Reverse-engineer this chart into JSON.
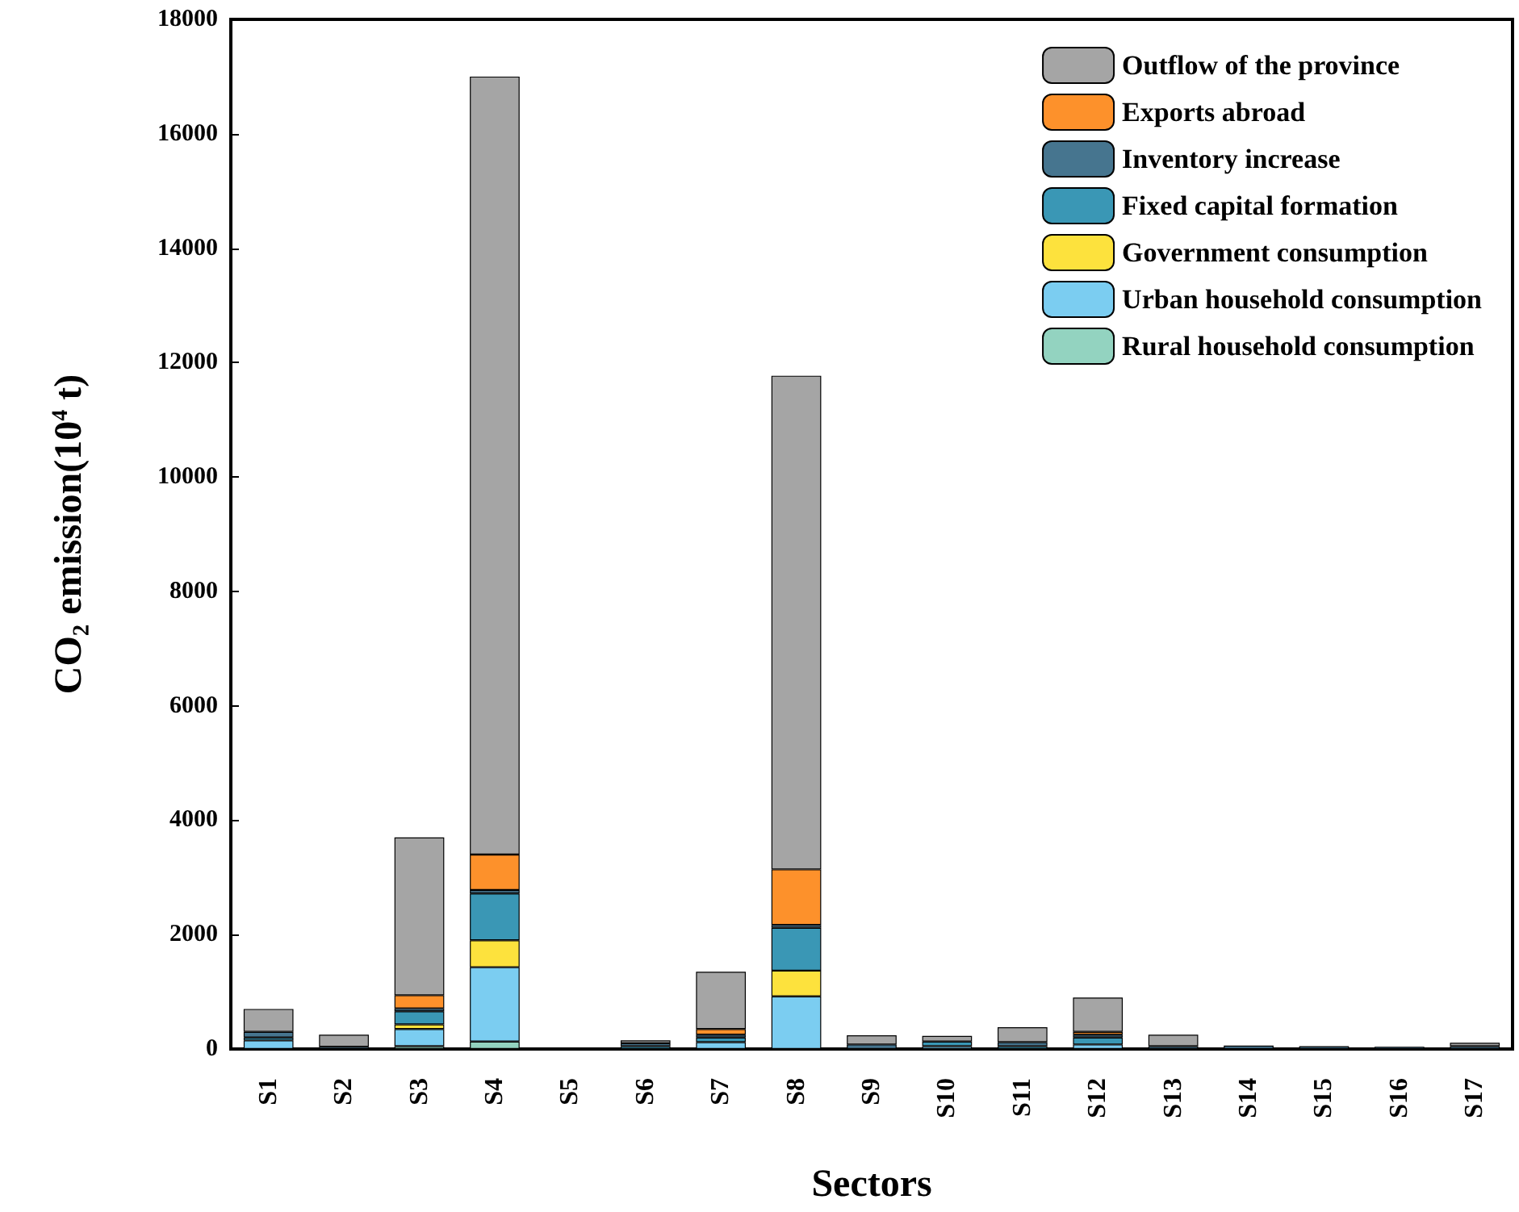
{
  "chart_data": {
    "type": "bar",
    "stacked": true,
    "xlabel": "Sectors",
    "ylabel": "CO₂ emission(10$^{4}$ t)",
    "categories": [
      "S1",
      "S2",
      "S3",
      "S4",
      "S5",
      "S6",
      "S7",
      "S8",
      "S9",
      "S10",
      "S11",
      "S12",
      "S13",
      "S14",
      "S15",
      "S16",
      "S17"
    ],
    "ylim": [
      0,
      18000
    ],
    "yticks": [
      0,
      2000,
      4000,
      6000,
      8000,
      10000,
      12000,
      14000,
      16000,
      18000
    ],
    "grid": false,
    "legend": "top right",
    "series": [
      {
        "name": "Rural household consumption",
        "color": "#93d3c0",
        "values": [
          null,
          null,
          50,
          130,
          null,
          null,
          null,
          null,
          null,
          null,
          null,
          null,
          null,
          null,
          null,
          null,
          null
        ]
      },
      {
        "name": "Urban household consumption",
        "color": "#7bcdf1",
        "values": [
          150,
          null,
          300,
          1300,
          null,
          null,
          120,
          920,
          null,
          50,
          null,
          80,
          null,
          null,
          null,
          null,
          null
        ]
      },
      {
        "name": "Government consumption",
        "color": "#fde23d",
        "values": [
          null,
          null,
          80,
          470,
          null,
          null,
          null,
          450,
          null,
          null,
          null,
          null,
          null,
          null,
          null,
          null,
          null
        ]
      },
      {
        "name": "Fixed capital formation",
        "color": "#3a97b5",
        "values": [
          50,
          null,
          230,
          820,
          null,
          50,
          80,
          750,
          null,
          80,
          50,
          120,
          null,
          null,
          null,
          null,
          null
        ]
      },
      {
        "name": "Inventory increase",
        "color": "#46758f",
        "values": [
          100,
          40,
          50,
          60,
          null,
          50,
          50,
          50,
          80,
          null,
          70,
          50,
          50,
          60,
          50,
          40,
          50
        ]
      },
      {
        "name": "Exports abroad",
        "color": "#fd912b",
        "values": [
          null,
          null,
          230,
          620,
          null,
          null,
          100,
          970,
          null,
          null,
          null,
          50,
          null,
          null,
          null,
          null,
          null
        ]
      },
      {
        "name": "Outflow of the province",
        "color": "#a5a5a5",
        "values": [
          400,
          210,
          2760,
          13600,
          null,
          50,
          1000,
          8630,
          160,
          100,
          260,
          600,
          200,
          null,
          null,
          null,
          60
        ]
      }
    ]
  }
}
